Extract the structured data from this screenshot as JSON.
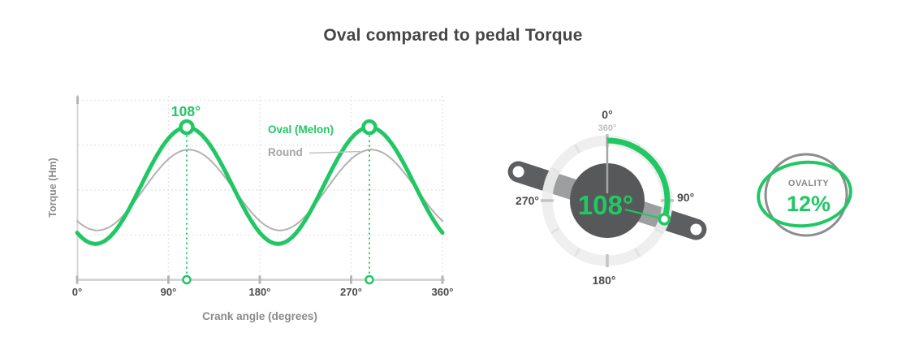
{
  "title": "Oval compared to pedal Torque",
  "colors": {
    "green": "#22c765",
    "round_gray": "#b5b1b1",
    "dark_text": "#454545",
    "tick_text": "#4c4c4c",
    "muted_text": "#8a8a8a",
    "grid_gray": "#e1e1e1",
    "axis_gray": "#d6d6d6",
    "crank_gray": "#5d5e60",
    "chainring_gray": "#57585a",
    "ring_light": "#ededed",
    "faded_label": "#bfbfbf",
    "ovality_circle_gray": "#8d8d8d"
  },
  "chart": {
    "ylabel": "Torque (Hm)",
    "xlabel": "Crank angle (degrees)",
    "x_ticks": [
      "0°",
      "90°",
      "180°",
      "270°",
      "360°"
    ],
    "peak_annotation": "108°",
    "legend": {
      "oval_label": "Oval (Melon)",
      "round_label": "Round"
    },
    "chart_data": {
      "type": "line",
      "title": "Oval compared to pedal Torque",
      "xlabel": "Crank angle (degrees)",
      "ylabel": "Torque (Hm)",
      "xlim_deg": [
        0,
        360
      ],
      "x_ticks_deg": [
        0,
        90,
        180,
        270,
        360
      ],
      "grid": "dotted",
      "legend_position": "inside top-right",
      "period_deg": 180,
      "y_units": "relative torque (y axis unlabeled)",
      "series": [
        {
          "name": "Oval (Melon)",
          "color": "#22c765",
          "mean": 2.1,
          "amplitude": 1.3,
          "peak_deg": 108,
          "peak_value": 3.4,
          "min_deg": 18,
          "min_value": 0.8,
          "peak_markers_deg": [
            108,
            288
          ]
        },
        {
          "name": "Round",
          "color": "#b5b1b1",
          "mean": 2.0,
          "amplitude": 0.9,
          "peak_deg": 110,
          "peak_value": 2.9,
          "min_deg": 20,
          "min_value": 1.1
        }
      ],
      "annotations": [
        {
          "text": "108°",
          "at_deg": 108
        }
      ]
    }
  },
  "dial": {
    "center_label": "108°",
    "labels": {
      "top": "0°",
      "top_sub": "360°",
      "right": "90°",
      "bottom": "180°",
      "left": "270°"
    },
    "arc_start_deg": 0,
    "arc_end_deg": 108,
    "tick_interval_deg": 30
  },
  "ovality": {
    "label": "OVALITY",
    "value": "12%"
  }
}
